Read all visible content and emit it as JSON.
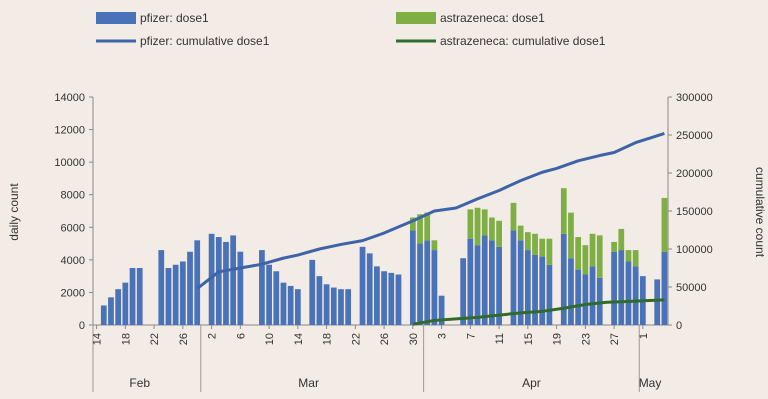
{
  "chart_data": {
    "type": "bar",
    "title": "",
    "colors": {
      "pfizer": "#4a72b8",
      "astrazeneca": "#7fae45",
      "pfizer_line": "#3e64a8",
      "astrazeneca_line": "#2f6b2a"
    },
    "legend": {
      "placement": "top",
      "entries": [
        {
          "key": "pfizer_bar",
          "label": "pfizer: dose1"
        },
        {
          "key": "az_bar",
          "label": "astrazeneca: dose1"
        },
        {
          "key": "pfizer_line",
          "label": "pfizer: cumulative dose1"
        },
        {
          "key": "az_line",
          "label": "astrazeneca: cumulative dose1"
        }
      ]
    },
    "y_left": {
      "label": "daily count",
      "min": 0,
      "max": 14000,
      "ticks": [
        "0",
        "2000",
        "4000",
        "6000",
        "8000",
        "10000",
        "12000",
        "14000"
      ]
    },
    "y_right": {
      "label": "cumulative count",
      "min": 0,
      "max": 300000,
      "ticks": [
        "0",
        "50000",
        "100000",
        "150000",
        "200000",
        "250000",
        "300000"
      ]
    },
    "x": {
      "start_index": 0,
      "end_index": 78,
      "tick_indices": [
        0,
        4,
        8,
        12,
        16,
        20,
        24,
        28,
        32,
        36,
        40,
        44,
        48,
        52,
        56,
        60,
        64,
        68,
        72,
        76
      ],
      "tick_labels": [
        "14",
        "18",
        "22",
        "26",
        "2",
        "6",
        "10",
        "14",
        "18",
        "22",
        "26",
        "30",
        "3",
        "7",
        "11",
        "15",
        "19",
        "23",
        "27",
        "1"
      ],
      "months": [
        {
          "label": "Feb",
          "center_index": 6
        },
        {
          "label": "Mar",
          "center_index": 29.5
        },
        {
          "label": "Apr",
          "center_index": 60.5
        },
        {
          "label": "May",
          "center_index": 77
        }
      ],
      "month_boundaries": [
        -0.5,
        14.5,
        45.5,
        75.5
      ]
    },
    "series": [
      {
        "name": "pfizer: dose1",
        "kind": "bar",
        "points": [
          [
            1,
            1200
          ],
          [
            2,
            1700
          ],
          [
            3,
            2200
          ],
          [
            4,
            2600
          ],
          [
            5,
            3500
          ],
          [
            6,
            3500
          ],
          [
            9,
            4600
          ],
          [
            10,
            3500
          ],
          [
            11,
            3700
          ],
          [
            12,
            3900
          ],
          [
            13,
            4500
          ],
          [
            14,
            5200
          ],
          [
            16,
            5600
          ],
          [
            17,
            5400
          ],
          [
            18,
            5100
          ],
          [
            19,
            5500
          ],
          [
            20,
            4500
          ],
          [
            23,
            4600
          ],
          [
            24,
            3700
          ],
          [
            25,
            3300
          ],
          [
            26,
            2600
          ],
          [
            27,
            2400
          ],
          [
            28,
            2200
          ],
          [
            30,
            4000
          ],
          [
            31,
            3000
          ],
          [
            32,
            2500
          ],
          [
            33,
            2300
          ],
          [
            34,
            2200
          ],
          [
            35,
            2200
          ],
          [
            37,
            4800
          ],
          [
            38,
            4400
          ],
          [
            39,
            3600
          ],
          [
            40,
            3300
          ],
          [
            41,
            3200
          ],
          [
            42,
            3100
          ],
          [
            44,
            5800
          ],
          [
            45,
            5000
          ],
          [
            46,
            5200
          ],
          [
            47,
            4600
          ],
          [
            48,
            1800
          ],
          [
            51,
            4100
          ],
          [
            52,
            5300
          ],
          [
            53,
            4900
          ],
          [
            54,
            5500
          ],
          [
            55,
            5200
          ],
          [
            56,
            4800
          ],
          [
            58,
            5800
          ],
          [
            59,
            5200
          ],
          [
            60,
            4600
          ],
          [
            61,
            4300
          ],
          [
            62,
            4200
          ],
          [
            63,
            3700
          ],
          [
            65,
            5600
          ],
          [
            66,
            4100
          ],
          [
            67,
            3400
          ],
          [
            68,
            3100
          ],
          [
            69,
            3600
          ],
          [
            70,
            2900
          ],
          [
            72,
            4500
          ],
          [
            73,
            4600
          ],
          [
            74,
            3900
          ],
          [
            75,
            3600
          ],
          [
            76,
            3000
          ],
          [
            78,
            2800
          ],
          [
            79,
            4500
          ]
        ]
      },
      {
        "name": "astrazeneca: dose1",
        "kind": "bar",
        "points": [
          [
            1,
            0
          ],
          [
            2,
            0
          ],
          [
            3,
            0
          ],
          [
            4,
            0
          ],
          [
            5,
            0
          ],
          [
            6,
            0
          ],
          [
            9,
            0
          ],
          [
            10,
            0
          ],
          [
            11,
            0
          ],
          [
            12,
            0
          ],
          [
            13,
            0
          ],
          [
            14,
            0
          ],
          [
            16,
            0
          ],
          [
            17,
            0
          ],
          [
            18,
            0
          ],
          [
            19,
            0
          ],
          [
            20,
            0
          ],
          [
            23,
            0
          ],
          [
            24,
            0
          ],
          [
            25,
            0
          ],
          [
            26,
            0
          ],
          [
            27,
            0
          ],
          [
            28,
            0
          ],
          [
            30,
            0
          ],
          [
            31,
            0
          ],
          [
            32,
            0
          ],
          [
            33,
            0
          ],
          [
            34,
            0
          ],
          [
            35,
            0
          ],
          [
            37,
            0
          ],
          [
            38,
            0
          ],
          [
            39,
            0
          ],
          [
            40,
            0
          ],
          [
            41,
            0
          ],
          [
            42,
            0
          ],
          [
            44,
            800
          ],
          [
            45,
            1800
          ],
          [
            46,
            1700
          ],
          [
            47,
            600
          ],
          [
            48,
            0
          ],
          [
            51,
            0
          ],
          [
            52,
            1800
          ],
          [
            53,
            2300
          ],
          [
            54,
            1600
          ],
          [
            55,
            1400
          ],
          [
            56,
            1600
          ],
          [
            58,
            1700
          ],
          [
            59,
            900
          ],
          [
            60,
            1100
          ],
          [
            61,
            1300
          ],
          [
            62,
            1100
          ],
          [
            63,
            1600
          ],
          [
            65,
            2800
          ],
          [
            66,
            2800
          ],
          [
            67,
            2000
          ],
          [
            68,
            1800
          ],
          [
            69,
            2000
          ],
          [
            70,
            2600
          ],
          [
            72,
            600
          ],
          [
            73,
            1300
          ],
          [
            74,
            700
          ],
          [
            75,
            1000
          ],
          [
            76,
            0
          ],
          [
            78,
            0
          ],
          [
            79,
            3300
          ]
        ]
      },
      {
        "name": "pfizer: cumulative dose1",
        "kind": "line",
        "axis": "right",
        "points": [
          [
            14,
            48000
          ],
          [
            17,
            70000
          ],
          [
            20,
            75000
          ],
          [
            23,
            80000
          ],
          [
            26,
            88000
          ],
          [
            28,
            92000
          ],
          [
            31,
            100000
          ],
          [
            34,
            106000
          ],
          [
            37,
            111000
          ],
          [
            40,
            121000
          ],
          [
            44,
            137000
          ],
          [
            47,
            150000
          ],
          [
            50,
            154000
          ],
          [
            53,
            166000
          ],
          [
            56,
            177000
          ],
          [
            59,
            190000
          ],
          [
            62,
            201000
          ],
          [
            64,
            206000
          ],
          [
            67,
            216000
          ],
          [
            70,
            223000
          ],
          [
            72,
            227000
          ],
          [
            75,
            240000
          ],
          [
            77,
            246000
          ],
          [
            79,
            252000
          ]
        ]
      },
      {
        "name": "astrazeneca: cumulative dose1",
        "kind": "line",
        "axis": "right",
        "points": [
          [
            44,
            1000
          ],
          [
            47,
            6000
          ],
          [
            50,
            8000
          ],
          [
            53,
            10000
          ],
          [
            56,
            13000
          ],
          [
            59,
            16000
          ],
          [
            62,
            18000
          ],
          [
            65,
            22000
          ],
          [
            68,
            27000
          ],
          [
            71,
            30000
          ],
          [
            74,
            31000
          ],
          [
            79,
            33000
          ]
        ]
      }
    ]
  }
}
